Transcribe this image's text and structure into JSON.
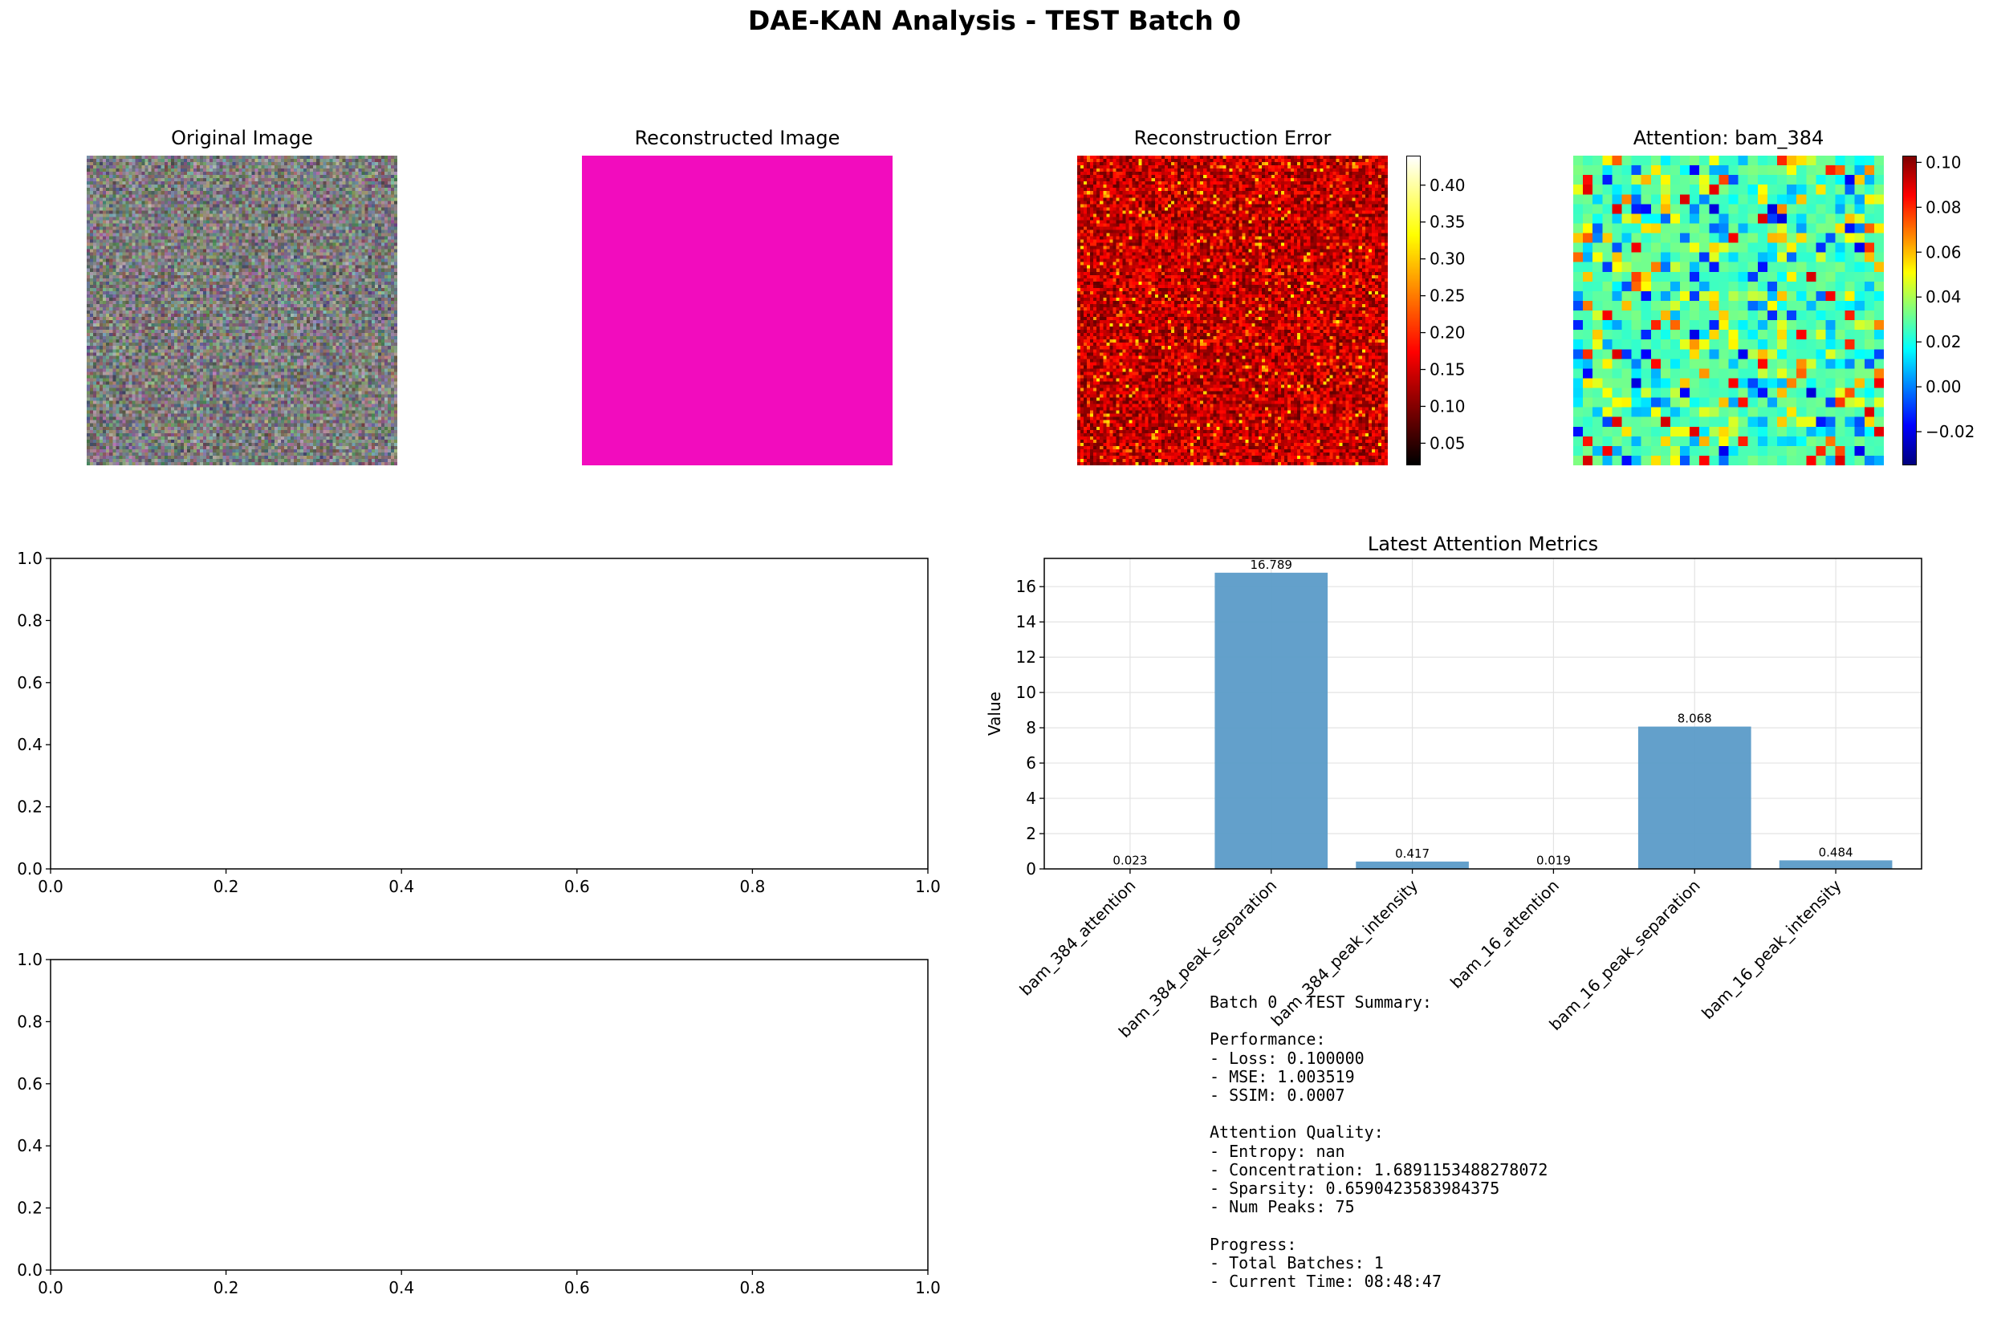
{
  "figure": {
    "title": "DAE-KAN Analysis - TEST Batch 0"
  },
  "panels": {
    "original": {
      "title": "Original Image",
      "grid": 96
    },
    "reconstructed": {
      "title": "Reconstructed Image",
      "color": "#f20cbe"
    },
    "error": {
      "title": "Reconstruction Error",
      "grid": 96,
      "colormap": "hot",
      "colorbar_ticks": [
        "0.05",
        "0.10",
        "0.15",
        "0.20",
        "0.25",
        "0.30",
        "0.35",
        "0.40"
      ],
      "range": [
        0.02,
        0.44
      ]
    },
    "attention": {
      "title": "Attention: bam_384",
      "grid": 32,
      "colormap": "jet",
      "colorbar_ticks": [
        "−0.02",
        "0.00",
        "0.02",
        "0.04",
        "0.06",
        "0.08",
        "0.10"
      ],
      "range": [
        -0.035,
        0.103
      ]
    },
    "empty_axes": {
      "xticks": [
        "0.0",
        "0.2",
        "0.4",
        "0.6",
        "0.8",
        "1.0"
      ],
      "yticks": [
        "0.0",
        "0.2",
        "0.4",
        "0.6",
        "0.8",
        "1.0"
      ]
    }
  },
  "chart_data": {
    "type": "bar",
    "title": "Latest Attention Metrics",
    "xlabel": "",
    "ylabel": "Value",
    "categories": [
      "bam_384_attention",
      "bam_384_peak_separation",
      "bam_384_peak_intensity",
      "bam_16_attention",
      "bam_16_peak_separation",
      "bam_16_peak_intensity"
    ],
    "values": [
      0.023,
      16.789,
      0.417,
      0.019,
      8.068,
      0.484
    ],
    "value_labels": [
      "0.023",
      "16.789",
      "0.417",
      "0.019",
      "8.068",
      "0.484"
    ],
    "ylim": [
      0,
      17.6
    ],
    "yticks": [
      "0",
      "2",
      "4",
      "6",
      "8",
      "10",
      "12",
      "14",
      "16"
    ],
    "bar_color": "#5b9bc8",
    "grid": true
  },
  "summary": {
    "lines": [
      "Batch 0 - TEST Summary:",
      "",
      "Performance:",
      "- Loss: 0.100000",
      "- MSE: 1.003519",
      "- SSIM: 0.0007",
      "",
      "Attention Quality:",
      "- Entropy: nan",
      "- Concentration: 1.6891153488278072",
      "- Sparsity: 0.6590423583984375",
      "- Num Peaks: 75",
      "",
      "Progress:",
      "- Total Batches: 1",
      "- Current Time: 08:48:47"
    ]
  }
}
